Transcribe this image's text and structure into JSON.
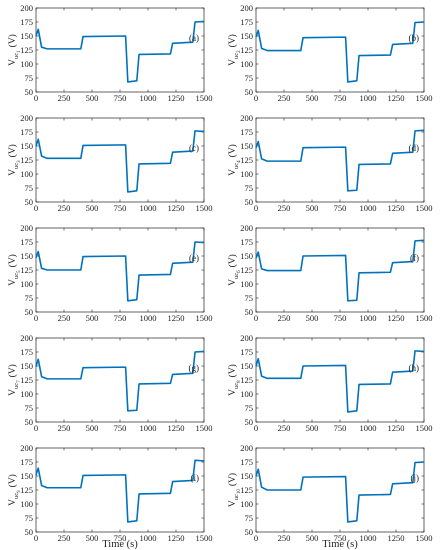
{
  "figure": {
    "x_axis_label": "Time (s)",
    "y_unit": "(V)",
    "line_color": "#0072BD"
  },
  "chart_data": [
    {
      "type": "line",
      "panel_label": "(a)",
      "ylabel_main": "V",
      "ylabel_sub": "uc",
      "ylabel_subsub": "1",
      "xlim": [
        0,
        1500
      ],
      "ylim": [
        50,
        200
      ],
      "xticks": [
        "0",
        "250",
        "500",
        "750",
        "1000",
        "1250",
        "1500"
      ],
      "yticks": [
        "50",
        "75",
        "100",
        "125",
        "150",
        "175",
        "200"
      ],
      "x": [
        0,
        20,
        50,
        100,
        400,
        420,
        800,
        820,
        900,
        920,
        1200,
        1220,
        1400,
        1420,
        1500
      ],
      "y": [
        150,
        162,
        130,
        127,
        127,
        149,
        150,
        68,
        70,
        117,
        118,
        137,
        139,
        175,
        176
      ]
    },
    {
      "type": "line",
      "panel_label": "(b)",
      "ylabel_main": "V",
      "ylabel_sub": "uc",
      "ylabel_subsub": "2",
      "xlim": [
        0,
        1500
      ],
      "ylim": [
        50,
        200
      ],
      "xticks": [
        "0",
        "250",
        "500",
        "750",
        "1000",
        "1250",
        "1500"
      ],
      "yticks": [
        "50",
        "75",
        "100",
        "125",
        "150",
        "175",
        "200"
      ],
      "x": [
        0,
        20,
        50,
        100,
        400,
        420,
        800,
        820,
        900,
        920,
        1200,
        1220,
        1400,
        1420,
        1500
      ],
      "y": [
        148,
        160,
        128,
        124,
        124,
        147,
        148,
        68,
        70,
        115,
        116,
        135,
        137,
        174,
        175
      ]
    },
    {
      "type": "line",
      "panel_label": "(c)",
      "ylabel_main": "V",
      "ylabel_sub": "uc",
      "ylabel_subsub": "3",
      "xlim": [
        0,
        1500
      ],
      "ylim": [
        50,
        200
      ],
      "xticks": [
        "0",
        "250",
        "500",
        "750",
        "1000",
        "1250",
        "1500"
      ],
      "yticks": [
        "50",
        "75",
        "100",
        "125",
        "150",
        "175",
        "200"
      ],
      "x": [
        0,
        20,
        50,
        100,
        400,
        420,
        800,
        820,
        900,
        920,
        1200,
        1220,
        1400,
        1420,
        1500
      ],
      "y": [
        150,
        162,
        132,
        128,
        128,
        151,
        152,
        68,
        70,
        118,
        119,
        139,
        141,
        177,
        176
      ]
    },
    {
      "type": "line",
      "panel_label": "(d)",
      "ylabel_main": "V",
      "ylabel_sub": "uc",
      "ylabel_subsub": "4",
      "xlim": [
        0,
        1500
      ],
      "ylim": [
        50,
        200
      ],
      "xticks": [
        "0",
        "250",
        "500",
        "750",
        "1000",
        "1250",
        "1500"
      ],
      "yticks": [
        "50",
        "75",
        "100",
        "125",
        "150",
        "175",
        "200"
      ],
      "x": [
        0,
        20,
        50,
        100,
        400,
        420,
        800,
        820,
        900,
        920,
        1200,
        1220,
        1400,
        1420,
        1500
      ],
      "y": [
        147,
        158,
        127,
        123,
        123,
        147,
        148,
        70,
        71,
        117,
        118,
        137,
        139,
        177,
        178
      ]
    },
    {
      "type": "line",
      "panel_label": "(e)",
      "ylabel_main": "V",
      "ylabel_sub": "uc",
      "ylabel_subsub": "5",
      "xlim": [
        0,
        1500
      ],
      "ylim": [
        50,
        200
      ],
      "xticks": [
        "0",
        "250",
        "500",
        "750",
        "1000",
        "1250",
        "1500"
      ],
      "yticks": [
        "50",
        "75",
        "100",
        "125",
        "150",
        "175",
        "200"
      ],
      "x": [
        0,
        20,
        50,
        100,
        400,
        420,
        800,
        820,
        900,
        920,
        1200,
        1220,
        1400,
        1420,
        1500
      ],
      "y": [
        147,
        158,
        128,
        125,
        125,
        149,
        150,
        70,
        72,
        116,
        117,
        137,
        139,
        175,
        174
      ]
    },
    {
      "type": "line",
      "panel_label": "(f)",
      "ylabel_main": "V",
      "ylabel_sub": "uc",
      "ylabel_subsub": "6",
      "xlim": [
        0,
        1500
      ],
      "ylim": [
        50,
        200
      ],
      "xticks": [
        "0",
        "250",
        "500",
        "750",
        "1000",
        "1250",
        "1500"
      ],
      "yticks": [
        "50",
        "75",
        "100",
        "125",
        "150",
        "175",
        "200"
      ],
      "x": [
        0,
        20,
        50,
        100,
        400,
        420,
        800,
        820,
        900,
        920,
        1200,
        1220,
        1400,
        1420,
        1500
      ],
      "y": [
        146,
        157,
        127,
        124,
        124,
        150,
        151,
        70,
        71,
        120,
        121,
        138,
        140,
        177,
        178
      ]
    },
    {
      "type": "line",
      "panel_label": "(g)",
      "ylabel_main": "V",
      "ylabel_sub": "uc",
      "ylabel_subsub": "7",
      "xlim": [
        0,
        1500
      ],
      "ylim": [
        50,
        200
      ],
      "xticks": [
        "0",
        "250",
        "500",
        "750",
        "1000",
        "1250",
        "1500"
      ],
      "yticks": [
        "50",
        "75",
        "100",
        "125",
        "150",
        "175",
        "200"
      ],
      "x": [
        0,
        20,
        50,
        100,
        400,
        420,
        800,
        820,
        900,
        920,
        1200,
        1220,
        1400,
        1420,
        1500
      ],
      "y": [
        149,
        162,
        131,
        127,
        127,
        147,
        148,
        70,
        71,
        118,
        119,
        135,
        137,
        175,
        176
      ]
    },
    {
      "type": "line",
      "panel_label": "(h)",
      "ylabel_main": "V",
      "ylabel_sub": "uc",
      "ylabel_subsub": "8",
      "xlim": [
        0,
        1500
      ],
      "ylim": [
        50,
        200
      ],
      "xticks": [
        "0",
        "250",
        "500",
        "750",
        "1000",
        "1250",
        "1500"
      ],
      "yticks": [
        "50",
        "75",
        "100",
        "125",
        "150",
        "175",
        "200"
      ],
      "x": [
        0,
        20,
        50,
        100,
        400,
        420,
        800,
        820,
        900,
        920,
        1200,
        1220,
        1400,
        1420,
        1500
      ],
      "y": [
        150,
        163,
        132,
        128,
        128,
        150,
        151,
        68,
        70,
        117,
        118,
        139,
        141,
        177,
        176
      ]
    },
    {
      "type": "line",
      "panel_label": "(i)",
      "ylabel_main": "V",
      "ylabel_sub": "uc",
      "ylabel_subsub": "9",
      "xlim": [
        0,
        1500
      ],
      "ylim": [
        50,
        200
      ],
      "xticks": [
        "0",
        "250",
        "500",
        "750",
        "1000",
        "1250",
        "1500"
      ],
      "yticks": [
        "50",
        "75",
        "100",
        "125",
        "150",
        "175",
        "200"
      ],
      "x": [
        0,
        20,
        50,
        100,
        400,
        420,
        800,
        820,
        900,
        920,
        1200,
        1220,
        1400,
        1420,
        1500
      ],
      "y": [
        152,
        164,
        133,
        129,
        129,
        151,
        152,
        68,
        70,
        118,
        119,
        140,
        142,
        178,
        177
      ]
    },
    {
      "type": "line",
      "panel_label": "(j)",
      "ylabel_main": "V",
      "ylabel_sub": "uc",
      "ylabel_subsub": "10",
      "xlim": [
        0,
        1500
      ],
      "ylim": [
        50,
        200
      ],
      "xticks": [
        "0",
        "250",
        "500",
        "750",
        "1000",
        "1250",
        "1500"
      ],
      "yticks": [
        "50",
        "75",
        "100",
        "125",
        "150",
        "175",
        "200"
      ],
      "x": [
        0,
        20,
        50,
        100,
        400,
        420,
        800,
        820,
        900,
        920,
        1200,
        1220,
        1400,
        1420,
        1500
      ],
      "y": [
        150,
        162,
        130,
        125,
        125,
        148,
        149,
        68,
        70,
        116,
        117,
        136,
        138,
        174,
        175
      ]
    }
  ]
}
